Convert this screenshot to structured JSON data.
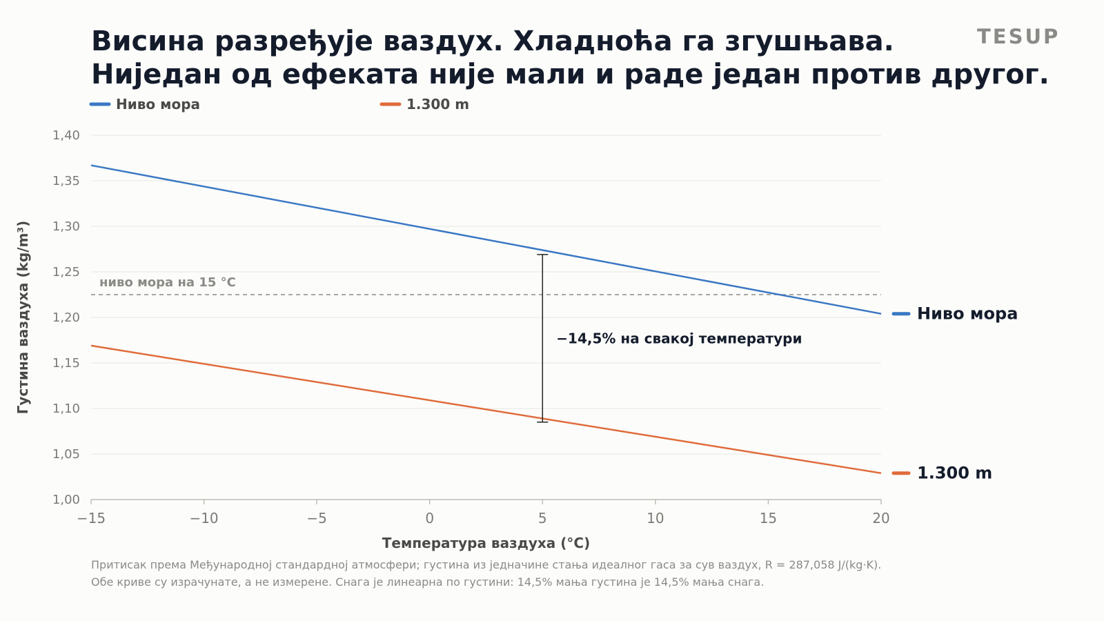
{
  "brand": "TESUP",
  "title_lines": [
    "Висина разређује ваздух. Хладноћа га згушњава.",
    "Ниједан од ефеката није мали и раде један против другог."
  ],
  "footnote_lines": [
    "Притисак према Међународној стандардној атмосфери; густина из једначине стања идеалног гаса за сув ваздух, R = 287,058 J/(kg·K).",
    "Обе криве су израчунате, а не измерене. Снага је линеарна по густини: 14,5% мања густина је 14,5% мања снага."
  ],
  "chart_data": {
    "type": "line",
    "xlabel": "Температура ваздуха (°C)",
    "ylabel": "Густина ваздуха (kg/m³)",
    "xlim": [
      -15,
      20
    ],
    "ylim": [
      1.0,
      1.4
    ],
    "x_ticks": [
      "−15",
      "−10",
      "−5",
      "0",
      "5",
      "10",
      "15",
      "20"
    ],
    "y_ticks": [
      "1,00",
      "1,05",
      "1,10",
      "1,15",
      "1,20",
      "1,25",
      "1,30",
      "1,35",
      "1,40"
    ],
    "grid": "horizontal",
    "legend_position": "top-left",
    "series": [
      {
        "name": "Ниво мора",
        "color": "#3a78c4",
        "end_label": "Ниво мора",
        "x": [
          -15,
          20
        ],
        "y": [
          1.367,
          1.204
        ]
      },
      {
        "name": "1.300 m",
        "color": "#df6b3a",
        "end_label": "1.300 m",
        "x": [
          -15,
          20
        ],
        "y": [
          1.169,
          1.029
        ]
      }
    ],
    "reference_line": {
      "y": 1.225,
      "label": "ниво мора на 15 °C",
      "color": "#8a8a86"
    },
    "annotation": {
      "x": 5,
      "y_top": 1.269,
      "y_bottom": 1.085,
      "label": "−14,5% на свакој температури"
    }
  }
}
